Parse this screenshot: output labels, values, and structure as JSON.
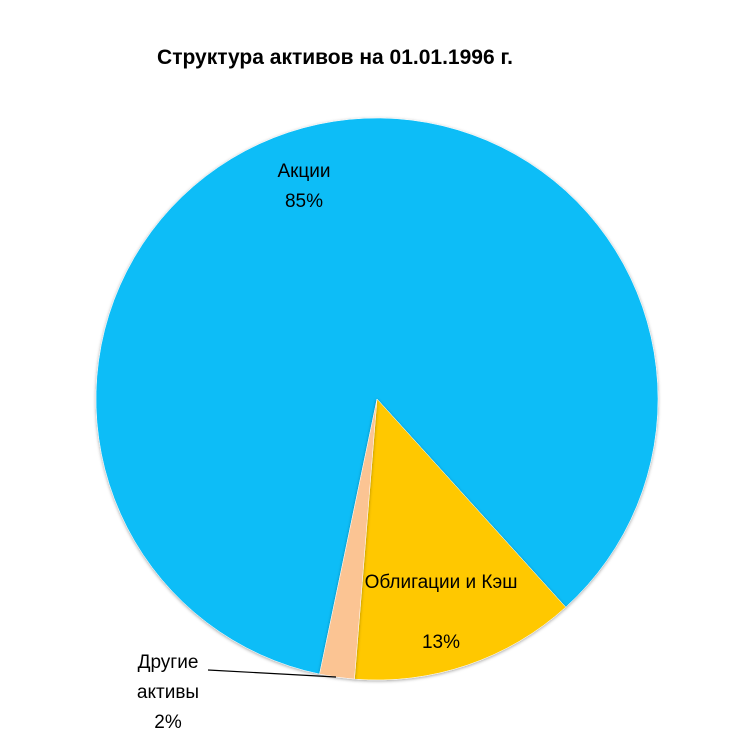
{
  "chart_data": {
    "type": "pie",
    "title": "Структура активов  на 01.01.1996 г.",
    "categories": [
      "Акции",
      "Облигации и Кэш",
      "Другие активы"
    ],
    "values": [
      85,
      13,
      2
    ],
    "value_labels": [
      "85%",
      "13%",
      "2%"
    ],
    "colors": [
      "#0dbdf7",
      "#ffc800",
      "#fbc493"
    ]
  }
}
